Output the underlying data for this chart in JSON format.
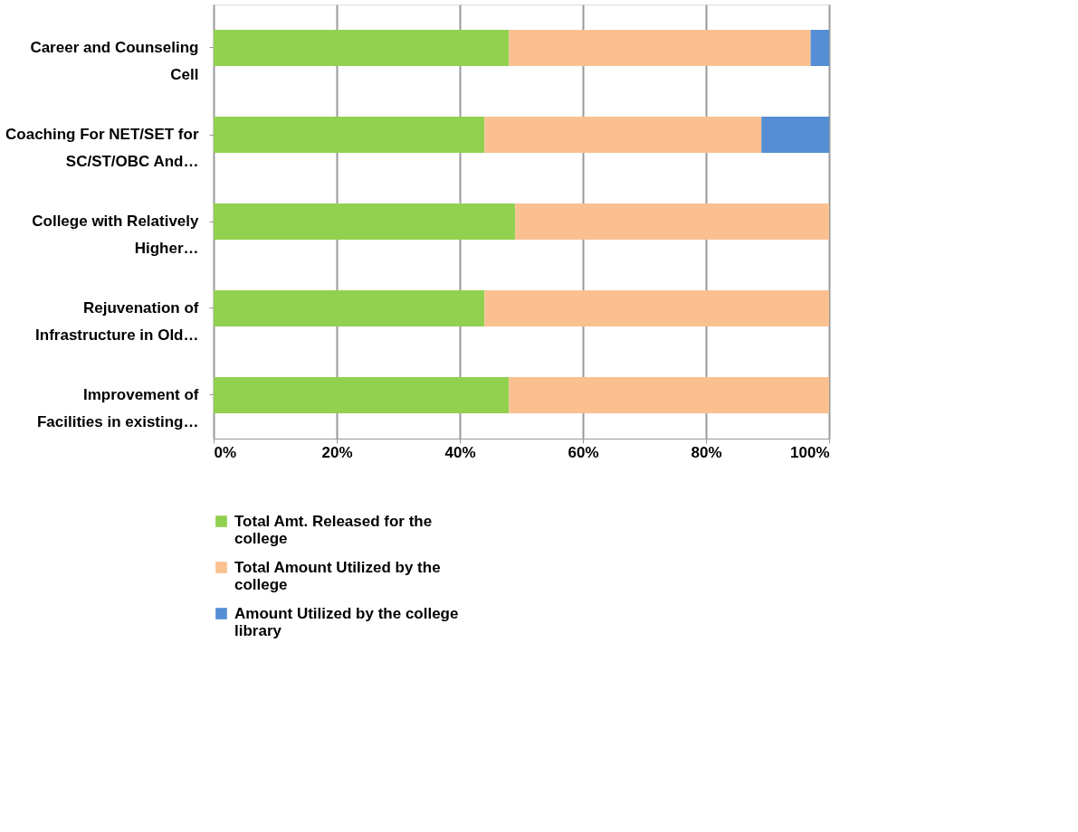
{
  "chart_data": {
    "type": "bar",
    "orientation": "horizontal",
    "stacked": true,
    "categories": [
      "Career and Counseling Cell",
      "Coaching For NET/SET for SC/ST/OBC And…",
      "College with Relatively Higher…",
      "Rejuvenation of Infrastructure in Old…",
      "Improvement of Facilities in existing…"
    ],
    "series": [
      {
        "name": "Total Amt. Released for the college",
        "color": "#92d050",
        "values": [
          48,
          44,
          49,
          44,
          48
        ]
      },
      {
        "name": "Total Amount Utilized by the college",
        "color": "#fac090",
        "values": [
          49,
          45,
          51,
          56,
          52
        ]
      },
      {
        "name": "Amount Utilized by the college library",
        "color": "#558ed5",
        "values": [
          3,
          11,
          0,
          0,
          0
        ]
      }
    ],
    "xlim": [
      0,
      100
    ],
    "xticks": [
      {
        "value": 0,
        "label": "0%"
      },
      {
        "value": 20,
        "label": "20%"
      },
      {
        "value": 40,
        "label": "40%"
      },
      {
        "value": 60,
        "label": "60%"
      },
      {
        "value": 80,
        "label": "80%"
      },
      {
        "value": 100,
        "label": "100%"
      }
    ],
    "grid": "x",
    "legend": "bottom"
  }
}
